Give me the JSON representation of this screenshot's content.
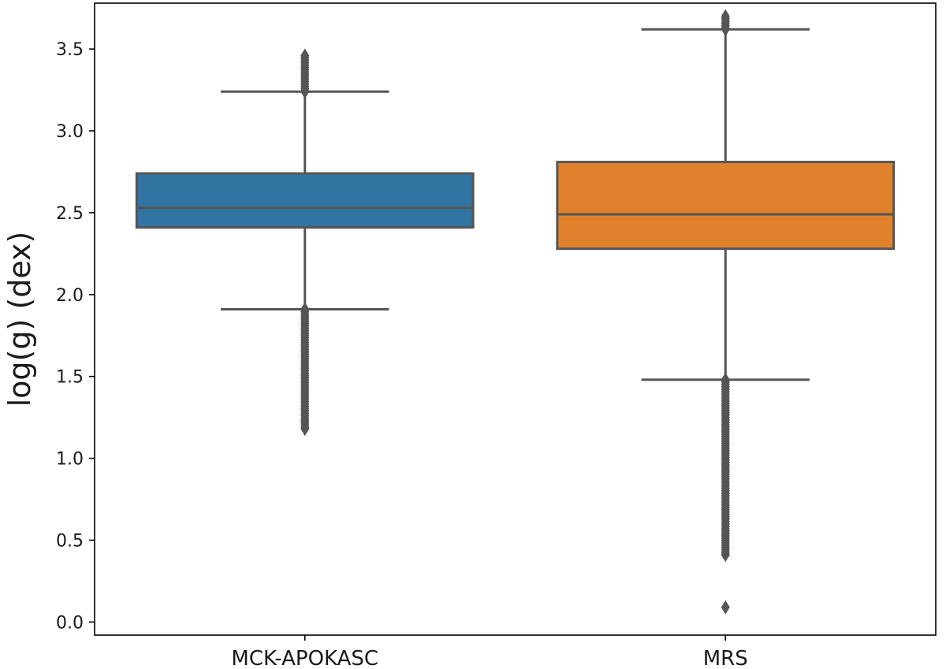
{
  "chart_data": {
    "type": "box",
    "title": "",
    "xlabel": "",
    "ylabel": "log(g) (dex)",
    "categories": [
      "MCK-APOKASC",
      "MRS"
    ],
    "ylim": [
      -0.08,
      3.78
    ],
    "yticks": [
      0.0,
      0.5,
      1.0,
      1.5,
      2.0,
      2.5,
      3.0,
      3.5
    ],
    "ytick_labels": [
      "0.0",
      "0.5",
      "1.0",
      "1.5",
      "2.0",
      "2.5",
      "3.0",
      "3.5"
    ],
    "grid": false,
    "legend": "none",
    "boxes": [
      {
        "category": "MCK-APOKASC",
        "color": "#3274a1",
        "whisker_low": 1.91,
        "q1": 2.41,
        "median": 2.53,
        "q3": 2.74,
        "whisker_high": 3.24,
        "outliers_high_range": [
          3.24,
          3.46
        ],
        "outliers_low_range": [
          1.18,
          1.91
        ],
        "outliers_isolated": []
      },
      {
        "category": "MRS",
        "color": "#e1812c",
        "whisker_low": 1.48,
        "q1": 2.28,
        "median": 2.49,
        "q3": 2.81,
        "whisker_high": 3.62,
        "outliers_high_range": [
          3.62,
          3.7
        ],
        "outliers_low_range": [
          0.41,
          1.48
        ],
        "outliers_isolated": [
          0.09
        ]
      }
    ],
    "line_color": "#555555"
  }
}
